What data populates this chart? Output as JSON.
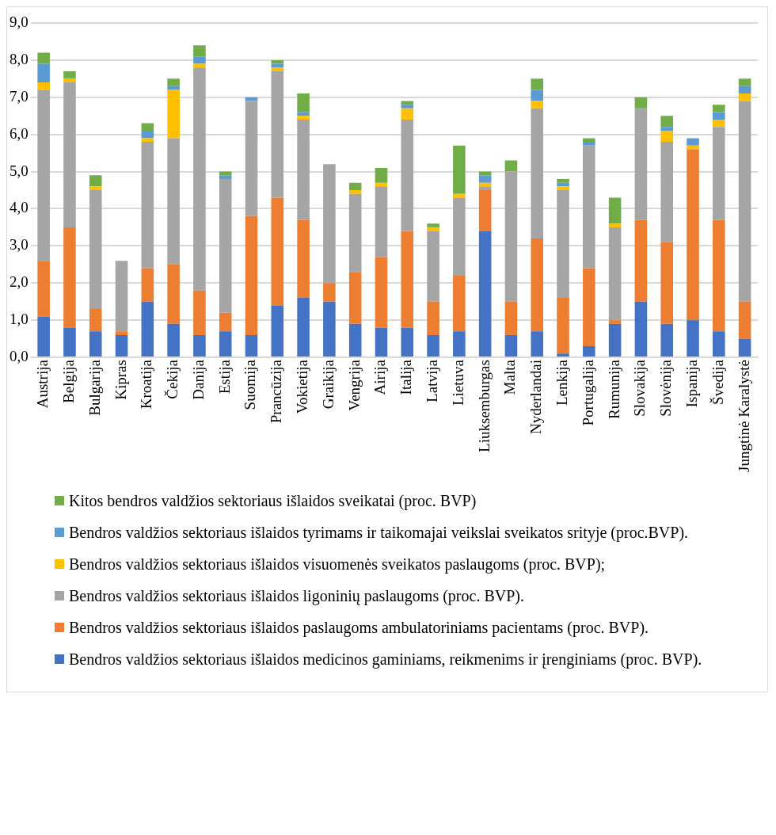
{
  "chart_data": {
    "type": "bar",
    "stacked": true,
    "legend": "bottom",
    "grid": "y",
    "categories": [
      "Austrija",
      "Belgija",
      "Bulgarija",
      "Kipras",
      "Kroatija",
      "Čekija",
      "Danija",
      "Estija",
      "Suomija",
      "Prancūzija",
      "Vokietija",
      "Graikija",
      "Vengrija",
      "Airija",
      "Italija",
      "Latvija",
      "Lietuva",
      "Liuksemburgas",
      "Malta",
      "Nyderlandai",
      "Lenkija",
      "Portugalija",
      "Rumunija",
      "Slovakija",
      "Slovėnija",
      "Ispanija",
      "Švedija",
      "Jungtinė Karalystė"
    ],
    "ylim": [
      0,
      9
    ],
    "yticks": [
      {
        "value": 0,
        "label": "0,0"
      },
      {
        "value": 1,
        "label": "1,0"
      },
      {
        "value": 2,
        "label": "2,0"
      },
      {
        "value": 3,
        "label": "3,0"
      },
      {
        "value": 4,
        "label": "4,0"
      },
      {
        "value": 5,
        "label": "5,0"
      },
      {
        "value": 6,
        "label": "6,0"
      },
      {
        "value": 7,
        "label": "7,0"
      },
      {
        "value": 8,
        "label": "8,0"
      },
      {
        "value": 9,
        "label": "9,0"
      }
    ],
    "series": [
      {
        "name": "Bendros valdžios sektoriaus išlaidos medicinos gaminiams, reikmenims ir įrenginiams (proc. BVP).",
        "color": "#4472c4",
        "values": [
          1.1,
          0.8,
          0.7,
          0.6,
          1.5,
          0.9,
          0.6,
          0.7,
          0.6,
          1.4,
          1.6,
          1.5,
          0.9,
          0.8,
          0.8,
          0.6,
          0.7,
          3.4,
          0.6,
          0.7,
          0.1,
          0.3,
          0.9,
          1.5,
          0.9,
          1.0,
          0.7,
          0.5
        ]
      },
      {
        "name": "Bendros valdžios sektoriaus išlaidos paslaugoms ambulatoriniams pacientams (proc. BVP).",
        "color": "#ed7d31",
        "values": [
          1.5,
          2.7,
          0.6,
          0.1,
          0.9,
          1.6,
          1.2,
          0.5,
          3.2,
          2.9,
          2.1,
          0.5,
          1.4,
          1.9,
          2.6,
          0.9,
          1.5,
          1.1,
          0.9,
          2.5,
          1.5,
          2.1,
          0.1,
          2.2,
          2.2,
          4.6,
          3.0,
          1.0
        ]
      },
      {
        "name": "Bendros valdžios sektoriaus išlaidos ligoninių paslaugoms (proc. BVP).",
        "color": "#a5a5a5",
        "values": [
          4.6,
          3.9,
          3.2,
          1.9,
          3.4,
          3.4,
          6.0,
          3.6,
          3.1,
          3.4,
          2.7,
          3.2,
          2.1,
          1.9,
          3.0,
          1.9,
          2.1,
          0.1,
          3.5,
          3.5,
          2.9,
          3.3,
          2.5,
          3.0,
          2.7,
          0,
          2.5,
          5.4
        ]
      },
      {
        "name": "Bendros valdžios sektoriaus išlaidos visuomenės sveikatos paslaugoms (proc. BVP);",
        "color": "#ffc000",
        "values": [
          0.2,
          0.1,
          0.1,
          0,
          0.1,
          1.3,
          0.1,
          0,
          0,
          0.1,
          0.1,
          0,
          0.1,
          0.1,
          0.3,
          0.1,
          0.1,
          0.1,
          0,
          0.2,
          0.1,
          0,
          0.1,
          0,
          0.3,
          0.1,
          0.2,
          0.2
        ]
      },
      {
        "name": "Bendros valdžios sektoriaus išlaidos tyrimams ir taikomajai veikslai sveikatos srityje (proc.BVP).",
        "color": "#5b9bd5",
        "values": [
          0.5,
          0,
          0,
          0,
          0.2,
          0.1,
          0.2,
          0.1,
          0.1,
          0.1,
          0.1,
          0,
          0,
          0,
          0.1,
          0,
          0,
          0.2,
          0,
          0.3,
          0.1,
          0.1,
          0,
          0,
          0.1,
          0.2,
          0.2,
          0.2
        ]
      },
      {
        "name": "Kitos bendros valdžios sektoriaus išlaidos sveikatai  (proc. BVP)",
        "color": "#70ad47",
        "values": [
          0.3,
          0.2,
          0.3,
          0,
          0.2,
          0.2,
          0.3,
          0.1,
          0,
          0.1,
          0.5,
          0,
          0.2,
          0.4,
          0.1,
          0.1,
          1.3,
          0.1,
          0.3,
          0.3,
          0.1,
          0.1,
          0.7,
          0.3,
          0.3,
          0,
          0.2,
          0.2
        ]
      }
    ]
  }
}
